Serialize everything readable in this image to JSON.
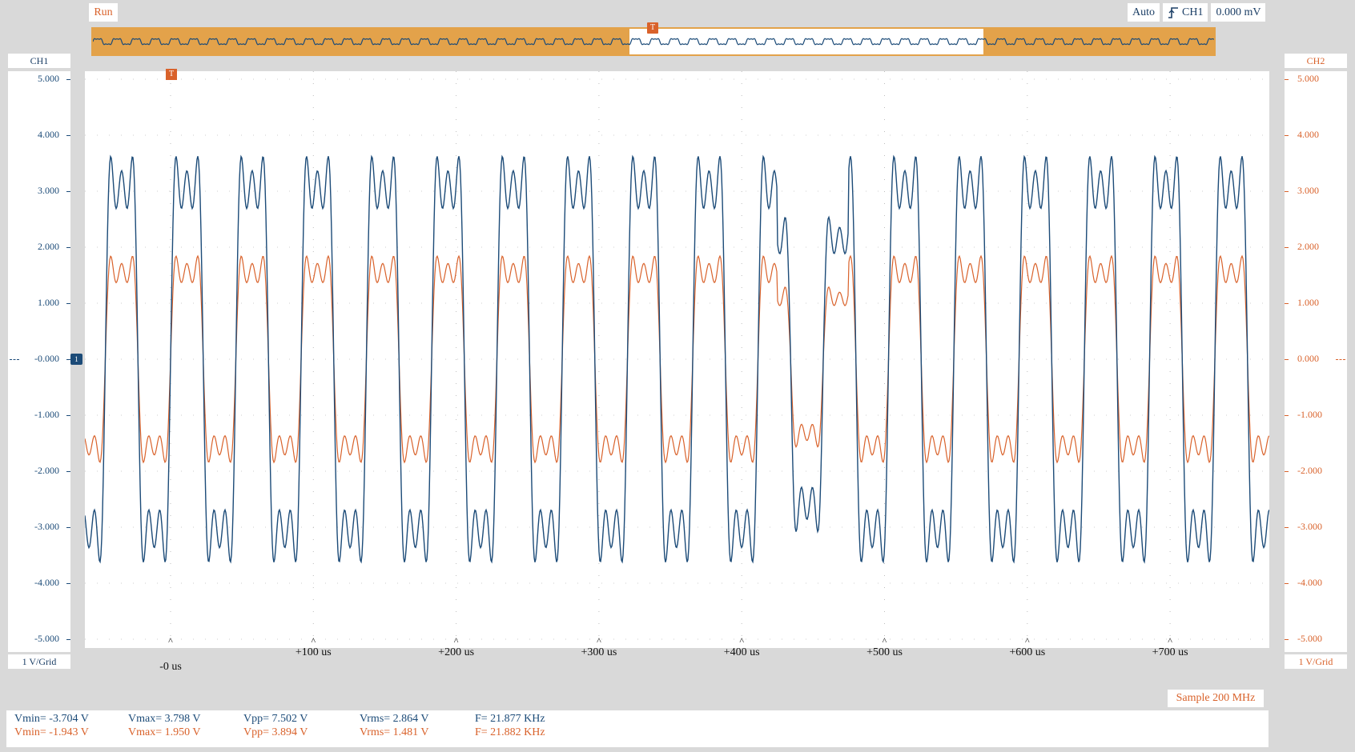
{
  "toolbar": {
    "run_label": "Run",
    "trigger_mode": "Auto",
    "trigger_edge_icon": "rising-edge-icon",
    "trigger_source": "CH1",
    "trigger_level": "0.000 mV"
  },
  "colors": {
    "ch1": "#1c4b78",
    "ch2": "#d9622b",
    "overview_highlight": "#e3a24a"
  },
  "left_axis": {
    "channel": "CH1",
    "scale": "1 V/Grid",
    "ticks": [
      "5.000",
      "4.000",
      "3.000",
      "2.000",
      "1.000",
      "-0.000",
      "-1.000",
      "-2.000",
      "-3.000",
      "-4.000",
      "-5.000"
    ]
  },
  "right_axis": {
    "channel": "CH2",
    "scale": "1 V/Grid",
    "ticks": [
      "5.000",
      "4.000",
      "3.000",
      "2.000",
      "1.000",
      "0.000",
      "-1.000",
      "-2.000",
      "-3.000",
      "-4.000",
      "-5.000"
    ]
  },
  "trigger_marker": "T",
  "ground_marker": "1",
  "time_axis": {
    "labels": [
      "-0 us",
      "+100 us",
      "+200 us",
      "+300 us",
      "+400 us",
      "+500 us",
      "+600 us",
      "+700 us"
    ]
  },
  "sample_rate": "Sample 200 MHz",
  "measurements": {
    "ch1": {
      "vmin": "Vmin= -3.704 V",
      "vmax": "Vmax= 3.798 V",
      "vpp": "Vpp= 7.502 V",
      "vrms": "Vrms= 2.864 V",
      "freq": "F= 21.877 KHz"
    },
    "ch2": {
      "vmin": "Vmin= -1.943 V",
      "vmax": "Vmax= 1.950 V",
      "vpp": "Vpp= 3.894 V",
      "vrms": "Vrms= 1.481 V",
      "freq": "F= 21.882 KHz"
    }
  }
}
